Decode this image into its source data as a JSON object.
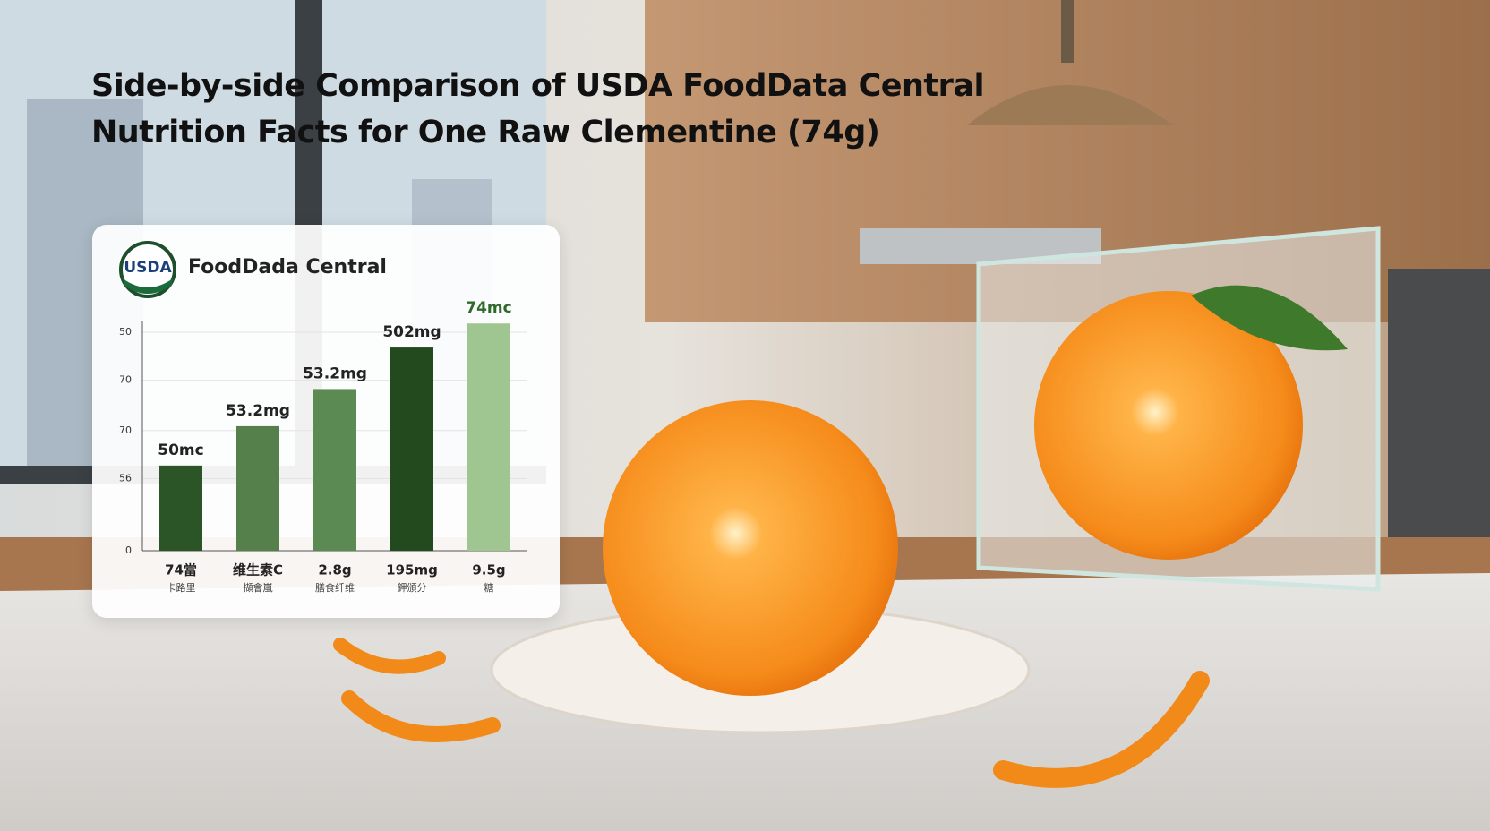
{
  "title": "Side-by-side Comparison of USDA FoodData Central Nutrition Facts for One Raw Clementine (74g)",
  "chart_data": {
    "type": "bar",
    "logo": "USDA",
    "source": "FoodDada Central",
    "categories": [
      "74當",
      "维生素C",
      "2.8g",
      "195mg",
      "9.5g"
    ],
    "sub_labels": [
      "卡路里",
      "擷會嵐",
      "膳食纤维",
      "鉀頒分",
      "糖"
    ],
    "values": [
      39,
      57,
      74,
      93,
      104
    ],
    "bar_labels": [
      "50mc",
      "53.2mg",
      "53.2mg",
      "502mg",
      "74mc"
    ],
    "colors": [
      "#2b5527",
      "#55804b",
      "#5b8a52",
      "#23491e",
      "#9fc690"
    ],
    "label_colors": [
      "#222222",
      "#222222",
      "#222222",
      "#222222",
      "#2f6a2a"
    ],
    "ylim": [
      0,
      105
    ],
    "yticks": [
      0,
      {
        "value": 33,
        "label": "56"
      },
      {
        "value": 55,
        "label": "70"
      },
      {
        "value": 78,
        "label": "70"
      },
      {
        "value": 100,
        "label": "50"
      }
    ],
    "grid": true
  }
}
